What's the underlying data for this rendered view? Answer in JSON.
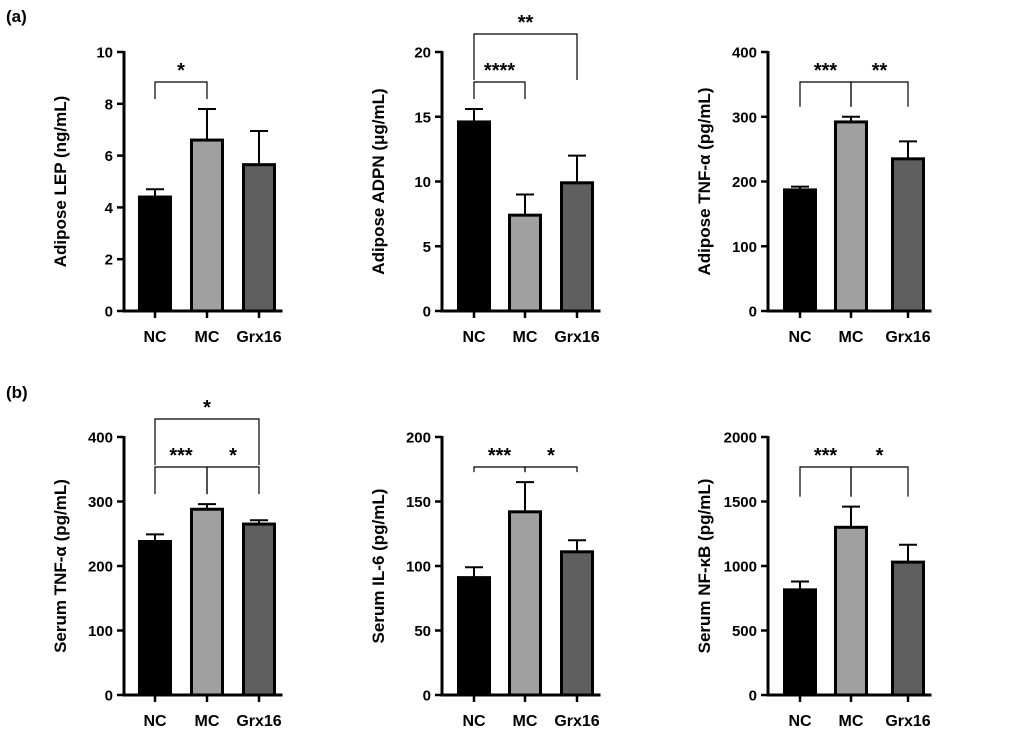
{
  "panel_labels": [
    "(a)",
    "(b)"
  ],
  "chart_data": [
    {
      "type": "bar",
      "panel": "(a)",
      "categories": [
        "NC",
        "MC",
        "Grx16"
      ],
      "values": [
        4.4,
        6.6,
        5.65
      ],
      "error": [
        0.3,
        1.2,
        1.3
      ],
      "ylabel": "Adipose LEP (ng/mL)",
      "ylim": [
        0,
        10
      ],
      "yticks": [
        "0",
        "2",
        "4",
        "6",
        "8",
        "10"
      ],
      "bar_colors": [
        "#000000",
        "#a0a0a0",
        "#5f5f5f"
      ],
      "significance": [
        {
          "from": 0,
          "to": 1,
          "label": "*",
          "level": 1
        }
      ]
    },
    {
      "type": "bar",
      "panel": "(a)",
      "categories": [
        "NC",
        "MC",
        "Grx16"
      ],
      "values": [
        14.6,
        7.4,
        9.9
      ],
      "error": [
        1.0,
        1.6,
        2.1
      ],
      "ylabel": "Adipose ADPN (μg/mL)",
      "ylim": [
        0,
        20
      ],
      "yticks": [
        "0",
        "5",
        "10",
        "15",
        "20"
      ],
      "bar_colors": [
        "#000000",
        "#a0a0a0",
        "#5f5f5f"
      ],
      "significance": [
        {
          "from": 0,
          "to": 1,
          "label": "****",
          "level": 1
        },
        {
          "from": 0,
          "to": 2,
          "label": "**",
          "level": 2
        }
      ]
    },
    {
      "type": "bar",
      "panel": "(a)",
      "categories": [
        "NC",
        "MC",
        "Grx16"
      ],
      "values": [
        187,
        292,
        235
      ],
      "error": [
        5,
        8,
        27
      ],
      "ylabel": "Adipose TNF-α (pg/mL)",
      "ylim": [
        0,
        400
      ],
      "yticks": [
        "0",
        "100",
        "200",
        "300",
        "400"
      ],
      "bar_colors": [
        "#000000",
        "#a0a0a0",
        "#5f5f5f"
      ],
      "significance": [
        {
          "from": 0,
          "to": 1,
          "label": "***",
          "level": 1
        },
        {
          "from": 1,
          "to": 2,
          "label": "**",
          "level": 1
        }
      ]
    },
    {
      "type": "bar",
      "panel": "(b)",
      "categories": [
        "NC",
        "MC",
        "Grx16"
      ],
      "values": [
        238,
        288,
        265
      ],
      "error": [
        11,
        8,
        6
      ],
      "ylabel": "Serum TNF-α (pg/mL)",
      "ylim": [
        0,
        400
      ],
      "yticks": [
        "0",
        "100",
        "200",
        "300",
        "400"
      ],
      "bar_colors": [
        "#000000",
        "#a0a0a0",
        "#5f5f5f"
      ],
      "significance": [
        {
          "from": 0,
          "to": 1,
          "label": "***",
          "level": 1
        },
        {
          "from": 1,
          "to": 2,
          "label": "*",
          "level": 1
        },
        {
          "from": 0,
          "to": 2,
          "label": "*",
          "level": 2
        }
      ]
    },
    {
      "type": "bar",
      "panel": "(b)",
      "categories": [
        "NC",
        "MC",
        "Grx16"
      ],
      "values": [
        91,
        142,
        111
      ],
      "error": [
        8,
        23,
        9
      ],
      "ylabel": "Serum IL-6 (pg/mL)",
      "ylim": [
        0,
        200
      ],
      "yticks": [
        "0",
        "50",
        "100",
        "150",
        "200"
      ],
      "bar_colors": [
        "#000000",
        "#a0a0a0",
        "#5f5f5f"
      ],
      "significance": [
        {
          "from": 0,
          "to": 1,
          "label": "***",
          "level": 1
        },
        {
          "from": 1,
          "to": 2,
          "label": "*",
          "level": 1
        }
      ]
    },
    {
      "type": "bar",
      "panel": "(b)",
      "categories": [
        "NC",
        "MC",
        "Grx16"
      ],
      "values": [
        815,
        1300,
        1030
      ],
      "error": [
        65,
        160,
        135
      ],
      "ylabel": "Serum NF-κB (pg/mL)",
      "ylim": [
        0,
        2000
      ],
      "yticks": [
        "0",
        "500",
        "1000",
        "1500",
        "2000"
      ],
      "bar_colors": [
        "#000000",
        "#a0a0a0",
        "#5f5f5f"
      ],
      "significance": [
        {
          "from": 0,
          "to": 1,
          "label": "***",
          "level": 1
        },
        {
          "from": 1,
          "to": 2,
          "label": "*",
          "level": 1
        }
      ]
    }
  ]
}
